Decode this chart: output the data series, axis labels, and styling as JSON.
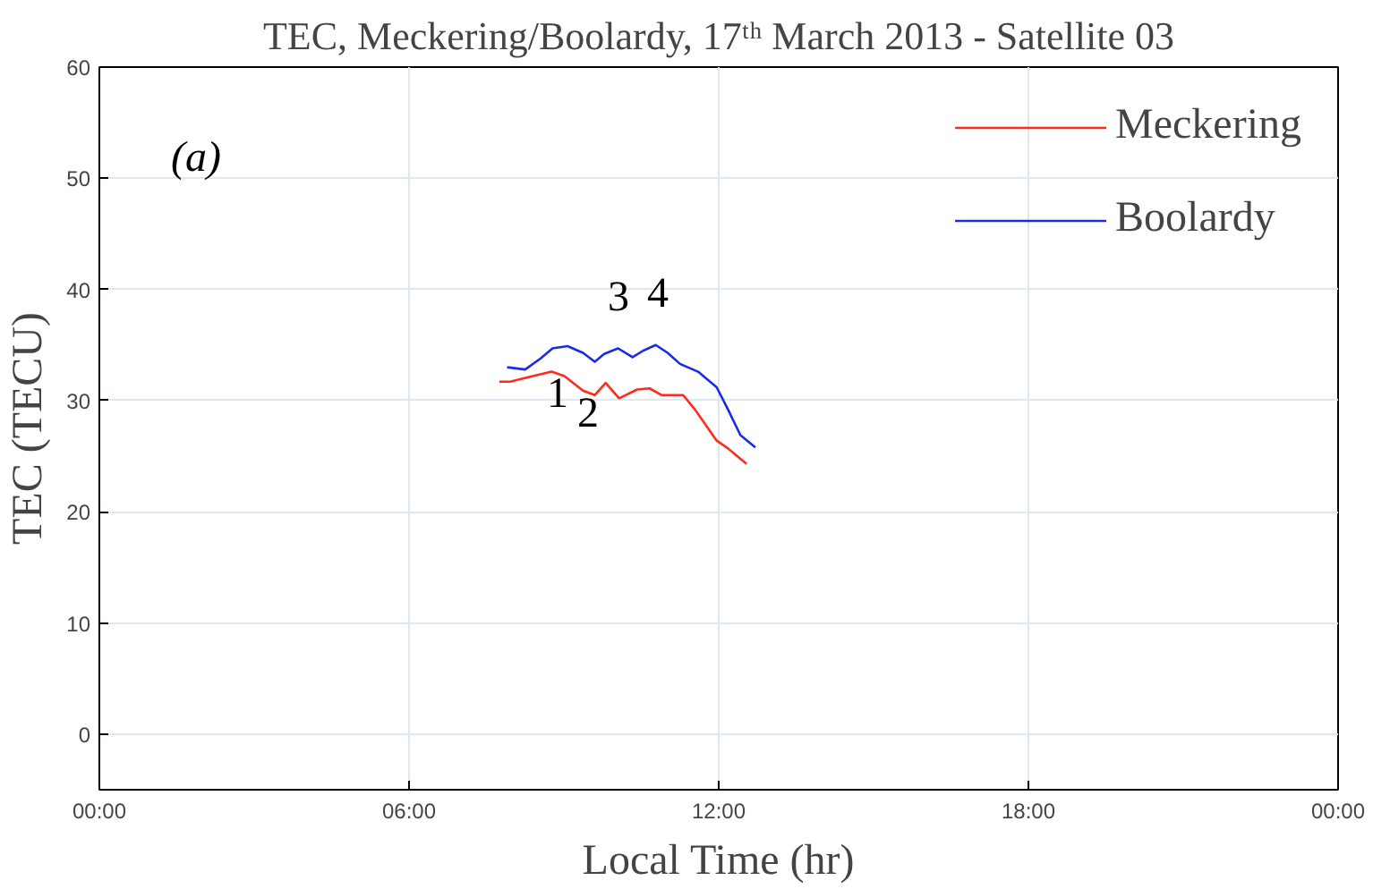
{
  "chart_data": {
    "type": "line",
    "title": "TEC, Meckering/Boolardy, 17ᵗʰ March 2013 - Satellite 03",
    "xlabel": "Local Time (hr)",
    "ylabel": "TEC (TECU)",
    "xlim": [
      0,
      24
    ],
    "xticks": [
      {
        "value": 0,
        "label": "00:00"
      },
      {
        "value": 6,
        "label": "06:00"
      },
      {
        "value": 12,
        "label": "12:00"
      },
      {
        "value": 18,
        "label": "18:00"
      },
      {
        "value": 24,
        "label": "00:00"
      }
    ],
    "ylim": [
      -5,
      60
    ],
    "yticks": [
      0,
      10,
      20,
      30,
      40,
      50,
      60
    ],
    "grid": true,
    "legend": "top right",
    "series": [
      {
        "name": "Meckering",
        "color": "#ff2a1a",
        "x": [
          7.75,
          7.96,
          8.31,
          8.76,
          9.01,
          9.37,
          9.6,
          9.81,
          10.07,
          10.42,
          10.66,
          10.89,
          11.31,
          11.54,
          11.96,
          12.18,
          12.54
        ],
        "values": [
          31.7,
          31.7,
          32.1,
          32.6,
          32.2,
          30.9,
          30.5,
          31.6,
          30.2,
          31.0,
          31.1,
          30.5,
          30.5,
          29.2,
          26.4,
          25.7,
          24.3
        ]
      },
      {
        "name": "Boolardy",
        "color": "#1a2ae6",
        "x": [
          7.9,
          8.25,
          8.55,
          8.78,
          9.07,
          9.37,
          9.6,
          9.78,
          10.05,
          10.33,
          10.54,
          10.78,
          11.01,
          11.25,
          11.6,
          11.96,
          12.18,
          12.42,
          12.71
        ],
        "values": [
          33.0,
          32.8,
          33.8,
          34.7,
          34.9,
          34.3,
          33.5,
          34.2,
          34.7,
          33.9,
          34.5,
          35.0,
          34.3,
          33.3,
          32.6,
          31.2,
          29.2,
          26.9,
          25.8
        ]
      }
    ],
    "annotations": [
      "(a)",
      "1",
      "2",
      "3",
      "4"
    ]
  }
}
